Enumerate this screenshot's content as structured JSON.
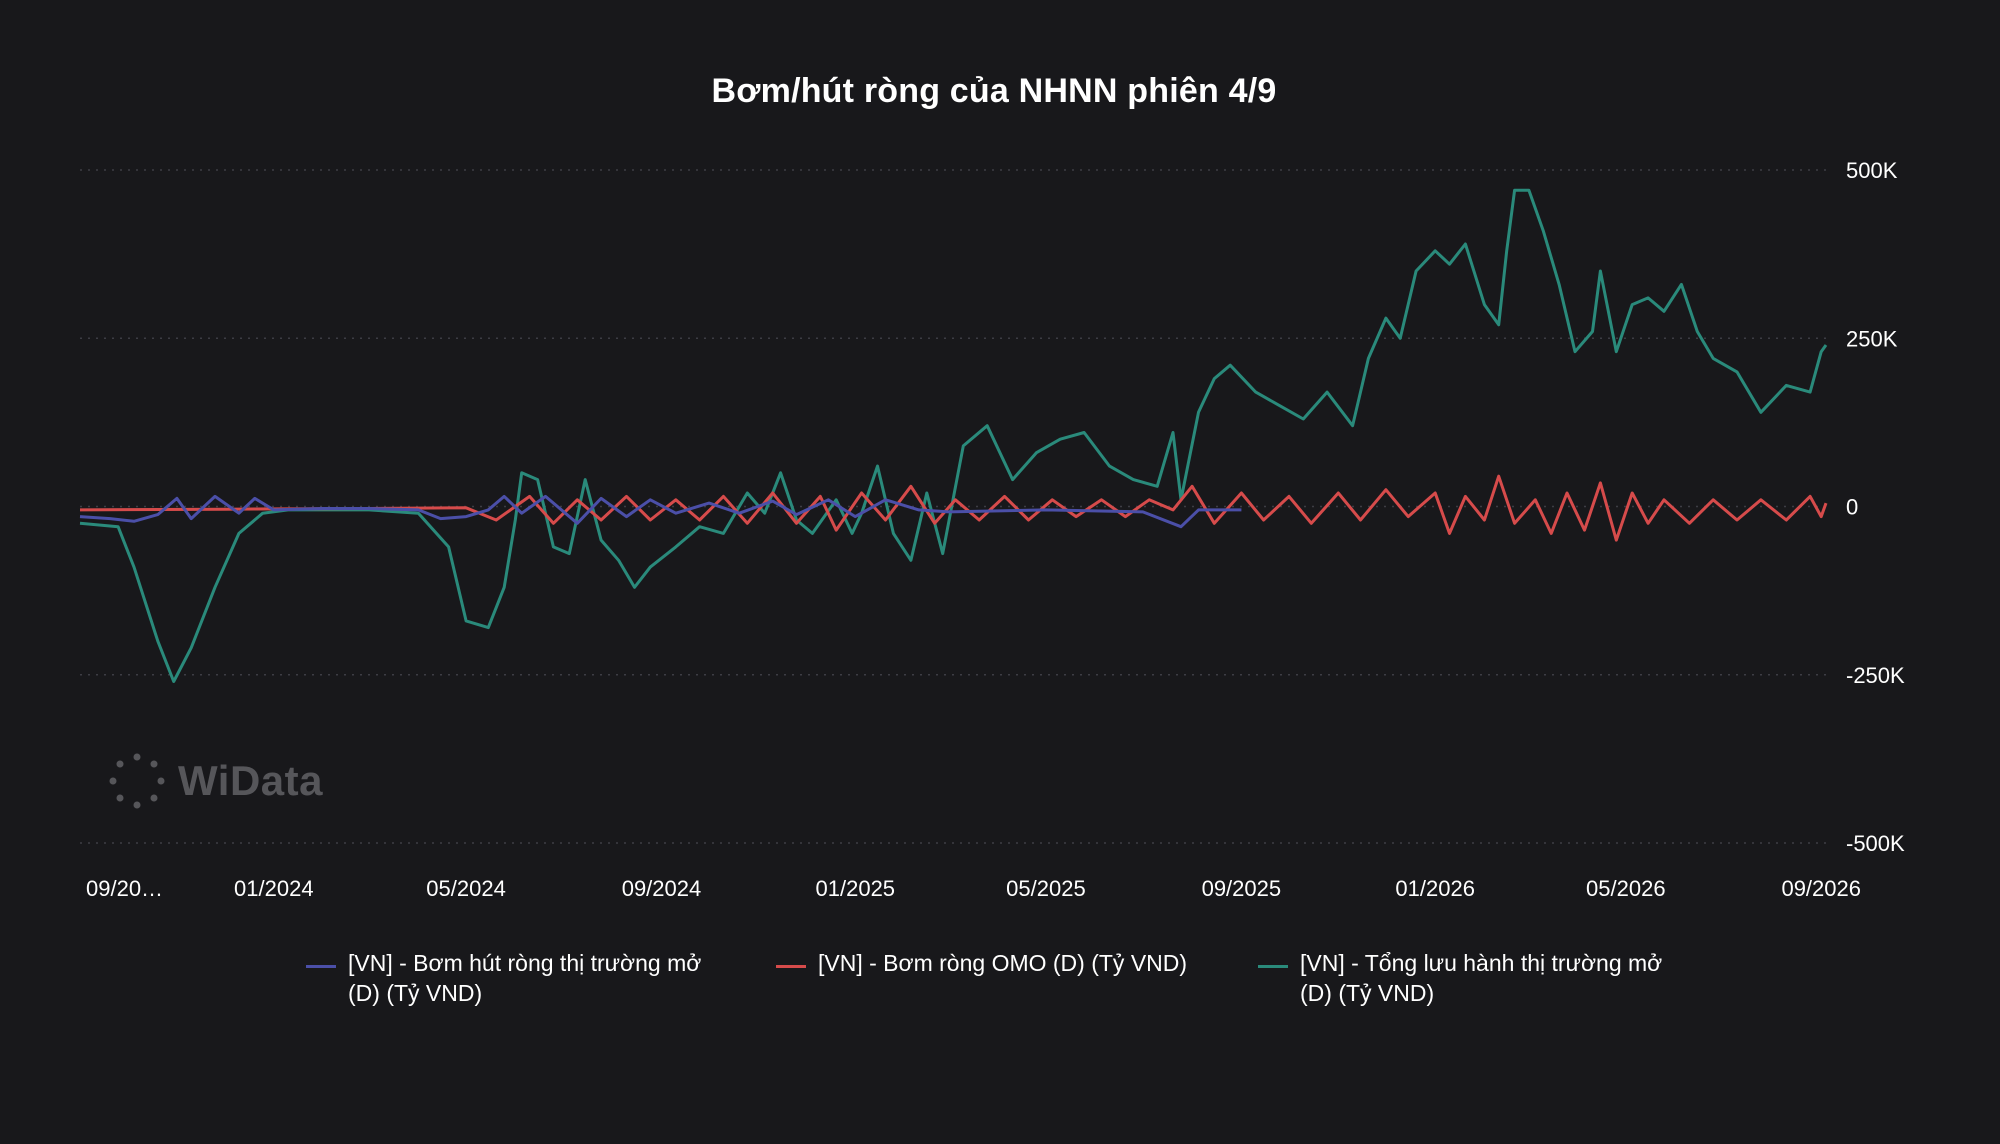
{
  "chart_data": {
    "type": "line",
    "title": "Bơm/hút ròng của NHNN phiên 4/9",
    "y_axis": {
      "position": "right",
      "ylim": [
        -500000,
        500000
      ],
      "ticks": [
        500000,
        250000,
        0,
        -250000,
        -500000
      ],
      "tick_labels": [
        "500K",
        "250K",
        "0",
        "-250K",
        "-500K"
      ]
    },
    "x_axis": {
      "xlim": [
        "2023-09-01",
        "2026-09-04"
      ],
      "ticks": [
        "2023-09-01",
        "2024-01-01",
        "2024-05-01",
        "2024-09-01",
        "2025-01-01",
        "2025-05-01",
        "2025-09-01",
        "2026-01-01",
        "2026-05-01",
        "2026-09-01"
      ],
      "tick_labels": [
        "09/20…",
        "01/2024",
        "05/2024",
        "09/2024",
        "01/2025",
        "05/2025",
        "09/2025",
        "01/2026",
        "05/2026",
        "09/2026"
      ]
    },
    "grid": "horizontal dotted",
    "legend_position": "bottom",
    "series": [
      {
        "name": "[VN] - Bơm hút ròng thị trường mở (D) (Tỷ VND)",
        "color": "#4b4fa8",
        "points": [
          [
            "2023-09-01",
            -15000
          ],
          [
            "2023-09-20",
            -18000
          ],
          [
            "2023-10-05",
            -22000
          ],
          [
            "2023-10-20",
            -12000
          ],
          [
            "2023-11-01",
            12000
          ],
          [
            "2023-11-10",
            -18000
          ],
          [
            "2023-11-25",
            15000
          ],
          [
            "2023-12-10",
            -10000
          ],
          [
            "2023-12-20",
            12000
          ],
          [
            "2024-01-01",
            -5000
          ],
          [
            "2024-02-01",
            -3000
          ],
          [
            "2024-03-01",
            -3000
          ],
          [
            "2024-04-01",
            -5000
          ],
          [
            "2024-04-15",
            -18000
          ],
          [
            "2024-05-01",
            -15000
          ],
          [
            "2024-05-15",
            -5000
          ],
          [
            "2024-05-25",
            15000
          ],
          [
            "2024-06-05",
            -10000
          ],
          [
            "2024-06-20",
            15000
          ],
          [
            "2024-07-10",
            -25000
          ],
          [
            "2024-07-25",
            12000
          ],
          [
            "2024-08-10",
            -15000
          ],
          [
            "2024-08-25",
            10000
          ],
          [
            "2024-09-10",
            -10000
          ],
          [
            "2024-10-01",
            5000
          ],
          [
            "2024-10-20",
            -10000
          ],
          [
            "2024-11-10",
            8000
          ],
          [
            "2024-11-25",
            -12000
          ],
          [
            "2024-12-15",
            10000
          ],
          [
            "2025-01-01",
            -15000
          ],
          [
            "2025-01-20",
            10000
          ],
          [
            "2025-02-10",
            -5000
          ],
          [
            "2025-03-01",
            -8000
          ],
          [
            "2025-05-01",
            -5000
          ],
          [
            "2025-07-01",
            -8000
          ],
          [
            "2025-07-25",
            -30000
          ],
          [
            "2025-08-05",
            -5000
          ],
          [
            "2025-09-01",
            -5000
          ]
        ]
      },
      {
        "name": "[VN] - Bơm ròng OMO (D) (Tỷ VND)",
        "color": "#d64b4b",
        "points": [
          [
            "2023-09-01",
            -5000
          ],
          [
            "2023-12-01",
            -4000
          ],
          [
            "2024-03-01",
            -3000
          ],
          [
            "2024-05-01",
            -2000
          ],
          [
            "2024-05-20",
            -20000
          ],
          [
            "2024-06-10",
            15000
          ],
          [
            "2024-06-25",
            -25000
          ],
          [
            "2024-07-10",
            10000
          ],
          [
            "2024-07-25",
            -20000
          ],
          [
            "2024-08-10",
            15000
          ],
          [
            "2024-08-25",
            -20000
          ],
          [
            "2024-09-10",
            10000
          ],
          [
            "2024-09-25",
            -20000
          ],
          [
            "2024-10-10",
            15000
          ],
          [
            "2024-10-25",
            -25000
          ],
          [
            "2024-11-10",
            20000
          ],
          [
            "2024-11-25",
            -25000
          ],
          [
            "2024-12-10",
            15000
          ],
          [
            "2024-12-20",
            -35000
          ],
          [
            "2025-01-05",
            20000
          ],
          [
            "2025-01-20",
            -20000
          ],
          [
            "2025-02-05",
            30000
          ],
          [
            "2025-02-20",
            -25000
          ],
          [
            "2025-03-05",
            10000
          ],
          [
            "2025-03-20",
            -20000
          ],
          [
            "2025-04-05",
            15000
          ],
          [
            "2025-04-20",
            -20000
          ],
          [
            "2025-05-05",
            10000
          ],
          [
            "2025-05-20",
            -15000
          ],
          [
            "2025-06-05",
            10000
          ],
          [
            "2025-06-20",
            -15000
          ],
          [
            "2025-07-05",
            10000
          ],
          [
            "2025-07-20",
            -5000
          ],
          [
            "2025-08-01",
            30000
          ],
          [
            "2025-08-15",
            -25000
          ],
          [
            "2025-09-01",
            20000
          ],
          [
            "2025-09-15",
            -20000
          ],
          [
            "2025-10-01",
            15000
          ],
          [
            "2025-10-15",
            -25000
          ],
          [
            "2025-11-01",
            20000
          ],
          [
            "2025-11-15",
            -20000
          ],
          [
            "2025-12-01",
            25000
          ],
          [
            "2025-12-15",
            -15000
          ],
          [
            "2026-01-01",
            20000
          ],
          [
            "2026-01-10",
            -40000
          ],
          [
            "2026-01-20",
            15000
          ],
          [
            "2026-02-01",
            -20000
          ],
          [
            "2026-02-10",
            45000
          ],
          [
            "2026-02-20",
            -25000
          ],
          [
            "2026-03-05",
            10000
          ],
          [
            "2026-03-15",
            -40000
          ],
          [
            "2026-03-25",
            20000
          ],
          [
            "2026-04-05",
            -35000
          ],
          [
            "2026-04-15",
            35000
          ],
          [
            "2026-04-25",
            -50000
          ],
          [
            "2026-05-05",
            20000
          ],
          [
            "2026-05-15",
            -25000
          ],
          [
            "2026-05-25",
            10000
          ],
          [
            "2026-06-10",
            -25000
          ],
          [
            "2026-06-25",
            10000
          ],
          [
            "2026-07-10",
            -20000
          ],
          [
            "2026-07-25",
            10000
          ],
          [
            "2026-08-10",
            -20000
          ],
          [
            "2026-08-25",
            15000
          ],
          [
            "2026-09-01",
            -15000
          ],
          [
            "2026-09-04",
            5000
          ]
        ]
      },
      {
        "name": "[VN] - Tổng lưu hành thị trường mở (D) (Tỷ VND)",
        "color": "#2a8a7b",
        "points": [
          [
            "2023-09-01",
            -25000
          ],
          [
            "2023-09-25",
            -30000
          ],
          [
            "2023-10-05",
            -90000
          ],
          [
            "2023-10-20",
            -200000
          ],
          [
            "2023-10-30",
            -260000
          ],
          [
            "2023-11-10",
            -210000
          ],
          [
            "2023-11-25",
            -120000
          ],
          [
            "2023-12-10",
            -40000
          ],
          [
            "2023-12-25",
            -10000
          ],
          [
            "2024-01-10",
            -5000
          ],
          [
            "2024-03-01",
            -5000
          ],
          [
            "2024-04-01",
            -10000
          ],
          [
            "2024-04-20",
            -60000
          ],
          [
            "2024-05-01",
            -170000
          ],
          [
            "2024-05-15",
            -180000
          ],
          [
            "2024-05-25",
            -120000
          ],
          [
            "2024-06-01",
            -20000
          ],
          [
            "2024-06-05",
            50000
          ],
          [
            "2024-06-15",
            40000
          ],
          [
            "2024-06-25",
            -60000
          ],
          [
            "2024-07-05",
            -70000
          ],
          [
            "2024-07-15",
            40000
          ],
          [
            "2024-07-25",
            -50000
          ],
          [
            "2024-08-05",
            -80000
          ],
          [
            "2024-08-15",
            -120000
          ],
          [
            "2024-08-25",
            -90000
          ],
          [
            "2024-09-10",
            -60000
          ],
          [
            "2024-09-25",
            -30000
          ],
          [
            "2024-10-10",
            -40000
          ],
          [
            "2024-10-25",
            20000
          ],
          [
            "2024-11-05",
            -10000
          ],
          [
            "2024-11-15",
            50000
          ],
          [
            "2024-11-25",
            -20000
          ],
          [
            "2024-12-05",
            -40000
          ],
          [
            "2024-12-20",
            10000
          ],
          [
            "2024-12-30",
            -40000
          ],
          [
            "2025-01-05",
            -10000
          ],
          [
            "2025-01-15",
            60000
          ],
          [
            "2025-01-25",
            -40000
          ],
          [
            "2025-02-05",
            -80000
          ],
          [
            "2025-02-15",
            20000
          ],
          [
            "2025-02-25",
            -70000
          ],
          [
            "2025-03-10",
            90000
          ],
          [
            "2025-03-25",
            120000
          ],
          [
            "2025-04-10",
            40000
          ],
          [
            "2025-04-25",
            80000
          ],
          [
            "2025-05-10",
            100000
          ],
          [
            "2025-05-25",
            110000
          ],
          [
            "2025-06-10",
            60000
          ],
          [
            "2025-06-25",
            40000
          ],
          [
            "2025-07-10",
            30000
          ],
          [
            "2025-07-20",
            110000
          ],
          [
            "2025-07-25",
            10000
          ],
          [
            "2025-08-05",
            140000
          ],
          [
            "2025-08-15",
            190000
          ],
          [
            "2025-08-25",
            210000
          ],
          [
            "2025-09-10",
            170000
          ],
          [
            "2025-09-25",
            150000
          ],
          [
            "2025-10-10",
            130000
          ],
          [
            "2025-10-25",
            170000
          ],
          [
            "2025-11-10",
            120000
          ],
          [
            "2025-11-20",
            220000
          ],
          [
            "2025-12-01",
            280000
          ],
          [
            "2025-12-10",
            250000
          ],
          [
            "2025-12-20",
            350000
          ],
          [
            "2026-01-01",
            380000
          ],
          [
            "2026-01-10",
            360000
          ],
          [
            "2026-01-20",
            390000
          ],
          [
            "2026-02-01",
            300000
          ],
          [
            "2026-02-10",
            270000
          ],
          [
            "2026-02-15",
            380000
          ],
          [
            "2026-02-20",
            470000
          ],
          [
            "2026-03-01",
            470000
          ],
          [
            "2026-03-10",
            410000
          ],
          [
            "2026-03-20",
            330000
          ],
          [
            "2026-03-30",
            230000
          ],
          [
            "2026-04-10",
            260000
          ],
          [
            "2026-04-15",
            350000
          ],
          [
            "2026-04-25",
            230000
          ],
          [
            "2026-05-05",
            300000
          ],
          [
            "2026-05-15",
            310000
          ],
          [
            "2026-05-25",
            290000
          ],
          [
            "2026-06-05",
            330000
          ],
          [
            "2026-06-15",
            260000
          ],
          [
            "2026-06-25",
            220000
          ],
          [
            "2026-07-10",
            200000
          ],
          [
            "2026-07-25",
            140000
          ],
          [
            "2026-08-10",
            180000
          ],
          [
            "2026-08-25",
            170000
          ],
          [
            "2026-09-01",
            230000
          ],
          [
            "2026-09-04",
            240000
          ]
        ]
      }
    ]
  },
  "watermark": {
    "icon": "dots-logo-icon",
    "text": "WiData"
  }
}
